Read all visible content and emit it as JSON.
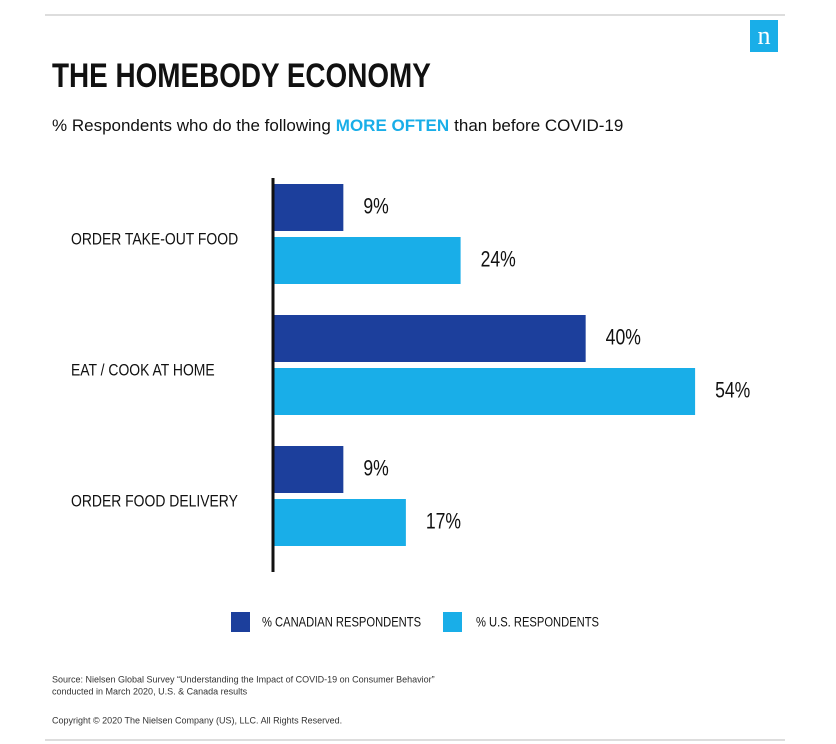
{
  "chart_data": {
    "type": "bar",
    "orientation": "horizontal",
    "title": "THE HOMEBODY ECONOMY",
    "subtitle": [
      "% Respondents who do the following",
      "MORE OFTEN",
      "than before COVID-19"
    ],
    "categories": [
      "ORDER TAKE-OUT FOOD",
      "EAT / COOK AT HOME",
      "ORDER FOOD DELIVERY"
    ],
    "series": [
      {
        "name": "% CANADIAN RESPONDENTS",
        "color": "#1c3f9c",
        "values": [
          9,
          40,
          9
        ],
        "value_labels": [
          "9%",
          "40%",
          "9%"
        ]
      },
      {
        "name": "% U.S. RESPONDENTS",
        "color": "#19aee8",
        "values": [
          24,
          54,
          17
        ],
        "value_labels": [
          "24%",
          "54%",
          "17%"
        ]
      }
    ],
    "xlim": [
      0,
      60
    ],
    "logo": "n",
    "source": [
      "Source: Nielsen Global Survey “Understanding the Impact of COVID-19 on Consumer Behavior”",
      "conducted in March 2020, U.S. & Canada results"
    ],
    "copyright": "Copyright © 2020 The Nielsen Company (US), LLC. All Rights Reserved."
  }
}
